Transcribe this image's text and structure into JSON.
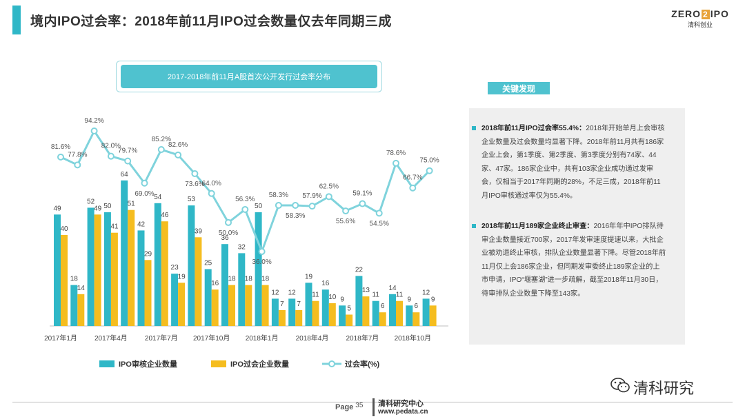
{
  "header": {
    "title": "境内IPO过会率：2018年前11月IPO过会数量仅去年同期三成",
    "logo_part1": "ZERO",
    "logo_mark": "2",
    "logo_part2": "IPO",
    "logo_sub": "清科创业"
  },
  "chart_data": {
    "type": "bar+line",
    "title": "2017-2018年前11月A股首次公开发行过会率分布",
    "categories": [
      "2017-01",
      "2017-02",
      "2017-03",
      "2017-04",
      "2017-05",
      "2017-06",
      "2017-07",
      "2017-08",
      "2017-09",
      "2017-10",
      "2017-11",
      "2017-12",
      "2018-01",
      "2018-02",
      "2018-03",
      "2018-04",
      "2018-05",
      "2018-06",
      "2018-07",
      "2018-08",
      "2018-09",
      "2018-10",
      "2018-11"
    ],
    "x_tick_labels": [
      "2017年1月",
      "2017年4月",
      "2017年7月",
      "2017年10月",
      "2018年1月",
      "2018年4月",
      "2018年7月",
      "2018年10月"
    ],
    "series": [
      {
        "name": "IPO审核企业数量",
        "type": "bar",
        "color": "#2fb7c7",
        "values": [
          49,
          18,
          52,
          50,
          64,
          42,
          54,
          23,
          53,
          25,
          36,
          32,
          50,
          12,
          12,
          19,
          16,
          9,
          22,
          11,
          14,
          9,
          12
        ]
      },
      {
        "name": "IPO过会企业数量",
        "type": "bar",
        "color": "#f5bd1f",
        "values": [
          40,
          14,
          49,
          41,
          51,
          29,
          46,
          19,
          39,
          16,
          18,
          18,
          18,
          7,
          7,
          11,
          10,
          5,
          13,
          6,
          11,
          6,
          9
        ]
      },
      {
        "name": "过会率(%)",
        "type": "line",
        "color": "#7fd3dc",
        "values": [
          81.6,
          77.8,
          94.2,
          82.0,
          79.7,
          69.0,
          85.2,
          82.6,
          73.6,
          64.0,
          50.0,
          56.3,
          36.0,
          58.3,
          58.3,
          57.9,
          62.5,
          55.6,
          59.1,
          54.5,
          78.6,
          66.7,
          75.0
        ]
      }
    ],
    "bar_label_texts": [
      "49",
      "18",
      "52",
      "50",
      "64",
      "42",
      "54",
      "23",
      "53",
      "25",
      "36",
      "32",
      "50",
      "12",
      "12",
      "19",
      "16",
      "9",
      "22",
      "11",
      "14",
      "9",
      "12"
    ],
    "bar2_label_texts": [
      "40",
      "14",
      "49",
      "41",
      "51",
      "29",
      "46",
      "19",
      "39",
      "16",
      "18",
      "18",
      "18",
      "7",
      "7",
      "11",
      "10",
      "5",
      "13",
      "6",
      "11",
      "6",
      "9"
    ],
    "line_label_texts": [
      "81.6%",
      "77.8%",
      "94.2%",
      "82.0%",
      "79.7%",
      "69.0%",
      "85.2%",
      "82.6%",
      "73.6%",
      "64.0%",
      "50.0%",
      "56.3%",
      "36.0%",
      "58.3%",
      "58.3%",
      "57.9%",
      "62.5%",
      "55.6%",
      "59.1%",
      "54.5%",
      "78.6%",
      "66.7%",
      "75.0%"
    ],
    "bar_ylim": [
      0,
      80
    ],
    "line_ylim": [
      0,
      100
    ]
  },
  "key_findings": {
    "badge": "关键发现",
    "items": [
      {
        "lead": "2018年前11月IPO过会率55.4%：",
        "body": "2018年开始单月上会审核企业数量及过会数量均显著下降。2018年前11月共有186家企业上会，第1季度、第2季度、第3季度分别有74家、44家、47家。186家企业中，共有103家企业成功通过发审会，仅相当于2017年同期的28%，不足三成，2018年前11月IPO审核通过率仅为55.4%。"
      },
      {
        "lead": "2018年前11月189家企业终止审查：",
        "body": "2016年年中IPO排队待审企业数量接近700家，2017年发审速度提速以来，大批企业被劝退终止审核，排队企业数量显著下降。尽管2018年前11月仅上会186家企业，但同期发审委终止189家企业的上市申请，IPO“堰塞湖”进一步疏解，截至2018年11月30日，待审排队企业数量下降至143家。"
      }
    ]
  },
  "footer": {
    "page_label": "Page",
    "page_number": "35",
    "org": "清科研究中心",
    "url": "www.pedata.cn",
    "wechat": "清科研究"
  }
}
